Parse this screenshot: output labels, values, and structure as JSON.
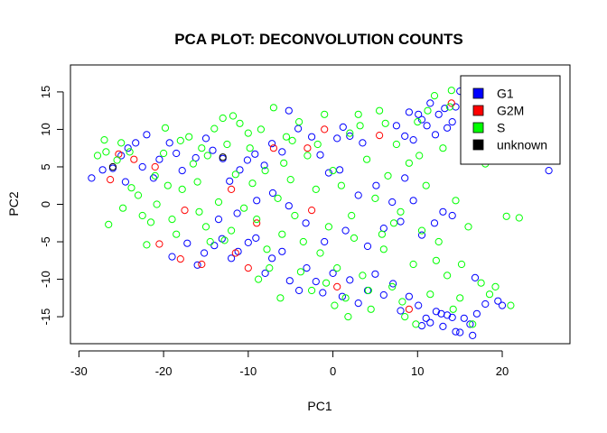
{
  "chart_data": {
    "type": "scatter",
    "title": "PCA PLOT: DECONVOLUTION COUNTS",
    "xlabel": "PC1",
    "ylabel": "PC2",
    "xlim": [
      -31,
      28
    ],
    "ylim": [
      -18.6,
      18.6
    ],
    "xticks": [
      -30,
      -20,
      -10,
      0,
      10,
      20
    ],
    "yticks": [
      -15,
      -10,
      -5,
      0,
      5,
      10,
      15
    ],
    "grid": false,
    "legend_position": "top-right",
    "legend": [
      {
        "name": "G1",
        "color": "#0000FF"
      },
      {
        "name": "G2M",
        "color": "#FF0000"
      },
      {
        "name": "S",
        "color": "#00FF00"
      },
      {
        "name": "unknown",
        "color": "#000000"
      }
    ],
    "series": [
      {
        "name": "G1",
        "color": "#0000FF",
        "points": [
          [
            -28.5,
            3.5
          ],
          [
            -27.2,
            4.6
          ],
          [
            -26.0,
            4.8
          ],
          [
            -25.0,
            6.5
          ],
          [
            -24.2,
            7.5
          ],
          [
            -23.3,
            8.2
          ],
          [
            -22.0,
            9.3
          ],
          [
            -21.2,
            3.5
          ],
          [
            -19.3,
            8.2
          ],
          [
            -18.5,
            6.8
          ],
          [
            -17.8,
            4.5
          ],
          [
            -16.2,
            6.2
          ],
          [
            -15.0,
            8.8
          ],
          [
            -14.2,
            7.2
          ],
          [
            -13.0,
            6.1
          ],
          [
            -12.2,
            3.1
          ],
          [
            -11.0,
            4.6
          ],
          [
            -10.1,
            5.9
          ],
          [
            -9.2,
            6.7
          ],
          [
            -8.1,
            5.2
          ],
          [
            -7.2,
            8.1
          ],
          [
            -6.0,
            7.0
          ],
          [
            -5.2,
            12.5
          ],
          [
            -4.1,
            10.1
          ],
          [
            -2.5,
            9.0
          ],
          [
            -1.5,
            6.6
          ],
          [
            0.5,
            8.8
          ],
          [
            1.2,
            10.3
          ],
          [
            2.0,
            9.1
          ],
          [
            3.5,
            8.2
          ],
          [
            0.8,
            4.6
          ],
          [
            -0.5,
            4.2
          ],
          [
            -19.0,
            -7.0
          ],
          [
            -17.2,
            -5.2
          ],
          [
            -16.0,
            -8.1
          ],
          [
            -15.2,
            -6.5
          ],
          [
            -14.0,
            -5.5
          ],
          [
            -13.1,
            -4.6
          ],
          [
            -12.0,
            -7.2
          ],
          [
            -11.2,
            -6.3
          ],
          [
            -10.0,
            -5.1
          ],
          [
            -9.1,
            -4.5
          ],
          [
            -8.0,
            -9.2
          ],
          [
            -7.2,
            -7.2
          ],
          [
            -6.0,
            -6.3
          ],
          [
            -5.1,
            -10.2
          ],
          [
            -4.0,
            -11.5
          ],
          [
            -3.1,
            -8.5
          ],
          [
            -2.0,
            -10.3
          ],
          [
            -1.2,
            -11.8
          ],
          [
            0.0,
            -9.2
          ],
          [
            1.1,
            -12.3
          ],
          [
            2.0,
            -10.1
          ],
          [
            3.0,
            -13.2
          ],
          [
            4.1,
            -11.5
          ],
          [
            5.0,
            -9.3
          ],
          [
            6.0,
            -12.1
          ],
          [
            7.1,
            -10.6
          ],
          [
            8.0,
            -14.2
          ],
          [
            9.0,
            -12.3
          ],
          [
            10.1,
            -13.5
          ],
          [
            11.0,
            -15.2
          ],
          [
            12.2,
            -14.3
          ],
          [
            13.0,
            -16.3
          ],
          [
            14.1,
            -15.1
          ],
          [
            15.0,
            -17.1
          ],
          [
            16.2,
            -16.0
          ],
          [
            17.0,
            -14.6
          ],
          [
            18.0,
            -13.3
          ],
          [
            19.5,
            -12.9
          ],
          [
            20.0,
            -13.5
          ],
          [
            14.5,
            -17.0
          ],
          [
            10.5,
            -16.2
          ],
          [
            11.5,
            -15.8
          ],
          [
            13.5,
            -14.8
          ],
          [
            15.5,
            -15.2
          ],
          [
            16.5,
            -17.5
          ],
          [
            12.8,
            -14.6
          ],
          [
            9.0,
            12.3
          ],
          [
            10.1,
            12.0
          ],
          [
            11.1,
            10.5
          ],
          [
            12.1,
            9.3
          ],
          [
            13.2,
            12.8
          ],
          [
            14.1,
            11.0
          ],
          [
            15.0,
            15.1
          ],
          [
            14.5,
            13.0
          ],
          [
            13.5,
            10.2
          ],
          [
            12.5,
            12.0
          ],
          [
            11.5,
            13.5
          ],
          [
            10.5,
            11.3
          ],
          [
            9.5,
            8.6
          ],
          [
            8.5,
            9.1
          ],
          [
            7.5,
            10.5
          ],
          [
            25.5,
            4.5
          ],
          [
            15.5,
            9.5
          ],
          [
            16.0,
            11.5
          ],
          [
            4.1,
            -5.6
          ],
          [
            6.0,
            -3.2
          ],
          [
            8.0,
            -2.3
          ],
          [
            9.5,
            0.5
          ],
          [
            10.5,
            -4.1
          ],
          [
            12.0,
            -2.5
          ],
          [
            13.0,
            -1.0
          ],
          [
            14.1,
            -1.5
          ],
          [
            -1.0,
            -5.0
          ],
          [
            1.5,
            -3.5
          ],
          [
            3.0,
            1.2
          ],
          [
            5.1,
            2.5
          ],
          [
            7.0,
            0.3
          ],
          [
            8.5,
            3.5
          ],
          [
            -3.2,
            -2.5
          ],
          [
            -5.2,
            -0.2
          ],
          [
            -7.1,
            1.5
          ],
          [
            -9.0,
            0.5
          ],
          [
            -11.3,
            -1.2
          ],
          [
            -13.5,
            -2.0
          ],
          [
            -24.5,
            3.0
          ],
          [
            -22.5,
            5.0
          ],
          [
            -20.5,
            6.0
          ],
          [
            16.8,
            -9.8
          ]
        ]
      },
      {
        "name": "G2M",
        "color": "#FF0000",
        "points": [
          [
            -26.3,
            3.3
          ],
          [
            -25.3,
            6.7
          ],
          [
            -20.5,
            -5.3
          ],
          [
            -18.0,
            -7.3
          ],
          [
            -17.5,
            -0.8
          ],
          [
            -15.5,
            -8.0
          ],
          [
            -12.0,
            2.0
          ],
          [
            -11.5,
            -6.5
          ],
          [
            -10.0,
            -8.5
          ],
          [
            -9.0,
            -2.5
          ],
          [
            -2.5,
            -0.8
          ],
          [
            -1.0,
            10.0
          ],
          [
            0.5,
            -11.0
          ],
          [
            5.5,
            9.2
          ],
          [
            9.0,
            -14.0
          ],
          [
            14.0,
            13.5
          ],
          [
            -23.5,
            6.0
          ],
          [
            -21.0,
            5.0
          ],
          [
            -7.0,
            7.5
          ],
          [
            -3.0,
            7.5
          ]
        ]
      },
      {
        "name": "S",
        "color": "#00FF00",
        "points": [
          [
            -27.0,
            8.6
          ],
          [
            -26.5,
            -2.7
          ],
          [
            -25.5,
            5.9
          ],
          [
            -25.0,
            8.2
          ],
          [
            -24.0,
            7.0
          ],
          [
            -23.0,
            1.2
          ],
          [
            -22.5,
            -1.5
          ],
          [
            -22.0,
            -5.4
          ],
          [
            -21.5,
            -2.4
          ],
          [
            -21.0,
            3.8
          ],
          [
            -20.0,
            6.8
          ],
          [
            -19.5,
            2.5
          ],
          [
            -19.0,
            -2.0
          ],
          [
            -18.5,
            -4.0
          ],
          [
            -18.0,
            8.5
          ],
          [
            -17.0,
            9.0
          ],
          [
            -16.5,
            5.4
          ],
          [
            -16.0,
            3.0
          ],
          [
            -15.5,
            7.5
          ],
          [
            -15.0,
            -3.0
          ],
          [
            -14.5,
            -5.0
          ],
          [
            -14.0,
            10.1
          ],
          [
            -13.5,
            0.3
          ],
          [
            -13.0,
            11.5
          ],
          [
            -12.5,
            8.0
          ],
          [
            -12.0,
            -3.5
          ],
          [
            -11.5,
            4.0
          ],
          [
            -11.0,
            10.8
          ],
          [
            -10.5,
            -0.5
          ],
          [
            -10.0,
            9.5
          ],
          [
            -9.5,
            2.8
          ],
          [
            -9.0,
            -2.0
          ],
          [
            -8.5,
            10.0
          ],
          [
            -8.0,
            4.5
          ],
          [
            -7.5,
            -8.5
          ],
          [
            -7.0,
            12.9
          ],
          [
            -6.5,
            0.8
          ],
          [
            -6.0,
            -4.0
          ],
          [
            -5.5,
            9.0
          ],
          [
            -5.0,
            3.3
          ],
          [
            -4.5,
            -1.5
          ],
          [
            -4.0,
            11.0
          ],
          [
            -3.5,
            -5.0
          ],
          [
            -3.0,
            6.5
          ],
          [
            -2.5,
            -11.5
          ],
          [
            -2.0,
            2.0
          ],
          [
            -1.5,
            -6.5
          ],
          [
            -1.0,
            12.0
          ],
          [
            -0.5,
            -3.0
          ],
          [
            0.0,
            4.5
          ],
          [
            0.5,
            -8.5
          ],
          [
            1.0,
            2.5
          ],
          [
            1.5,
            -12.5
          ],
          [
            2.0,
            9.5
          ],
          [
            2.5,
            -4.5
          ],
          [
            3.0,
            12.0
          ],
          [
            3.5,
            -9.5
          ],
          [
            4.0,
            6.0
          ],
          [
            4.5,
            -14.0
          ],
          [
            5.0,
            0.8
          ],
          [
            5.5,
            12.5
          ],
          [
            6.0,
            -6.0
          ],
          [
            6.5,
            3.8
          ],
          [
            7.0,
            -11.0
          ],
          [
            7.5,
            8.0
          ],
          [
            8.0,
            -1.0
          ],
          [
            8.5,
            -15.0
          ],
          [
            9.0,
            5.5
          ],
          [
            9.5,
            -8.0
          ],
          [
            10.0,
            11.0
          ],
          [
            10.5,
            -3.5
          ],
          [
            11.0,
            2.5
          ],
          [
            11.5,
            -12.0
          ],
          [
            12.0,
            14.5
          ],
          [
            12.5,
            -5.0
          ],
          [
            13.0,
            7.5
          ],
          [
            13.5,
            -9.5
          ],
          [
            14.0,
            15.2
          ],
          [
            14.5,
            0.5
          ],
          [
            15.0,
            -12.5
          ],
          [
            15.5,
            12.0
          ],
          [
            16.0,
            -3.0
          ],
          [
            16.5,
            -16.0
          ],
          [
            17.0,
            8.5
          ],
          [
            17.5,
            -10.5
          ],
          [
            18.0,
            5.4
          ],
          [
            18.5,
            -12.0
          ],
          [
            20.5,
            -1.6
          ],
          [
            21.0,
            -13.5
          ],
          [
            22.0,
            -1.8
          ],
          [
            -27.8,
            6.5
          ],
          [
            -26.8,
            7.0
          ],
          [
            -23.8,
            2.2
          ],
          [
            -20.8,
            0.0
          ],
          [
            -17.8,
            2.0
          ],
          [
            -14.8,
            6.5
          ],
          [
            -12.8,
            -4.8
          ],
          [
            -9.8,
            7.5
          ],
          [
            -7.8,
            -6.0
          ],
          [
            -5.8,
            5.5
          ],
          [
            -3.8,
            -9.0
          ],
          [
            -1.8,
            8.0
          ],
          [
            0.2,
            -13.5
          ],
          [
            2.2,
            -1.5
          ],
          [
            4.2,
            -11.5
          ],
          [
            6.2,
            10.8
          ],
          [
            8.2,
            -13.0
          ],
          [
            10.2,
            6.5
          ],
          [
            12.2,
            -7.5
          ],
          [
            14.2,
            -14.0
          ],
          [
            16.2,
            6.0
          ],
          [
            19.2,
            -11.0
          ],
          [
            -24.8,
            -0.5
          ],
          [
            -19.8,
            10.2
          ],
          [
            -15.8,
            -1.0
          ],
          [
            -11.8,
            11.8
          ],
          [
            -8.8,
            -10.0
          ],
          [
            -4.8,
            8.5
          ],
          [
            -0.8,
            -10.5
          ],
          [
            3.2,
            10.5
          ],
          [
            7.2,
            -2.5
          ],
          [
            11.2,
            12.5
          ],
          [
            15.2,
            -8.0
          ],
          [
            -6.2,
            -12.5
          ],
          [
            1.8,
            -15.0
          ],
          [
            9.8,
            -16.0
          ],
          [
            13.8,
            13.0
          ],
          [
            5.8,
            -4.0
          ]
        ]
      },
      {
        "name": "unknown",
        "color": "#000000",
        "points": [
          [
            -26.0,
            5.0
          ],
          [
            -13.0,
            6.3
          ]
        ]
      }
    ]
  }
}
